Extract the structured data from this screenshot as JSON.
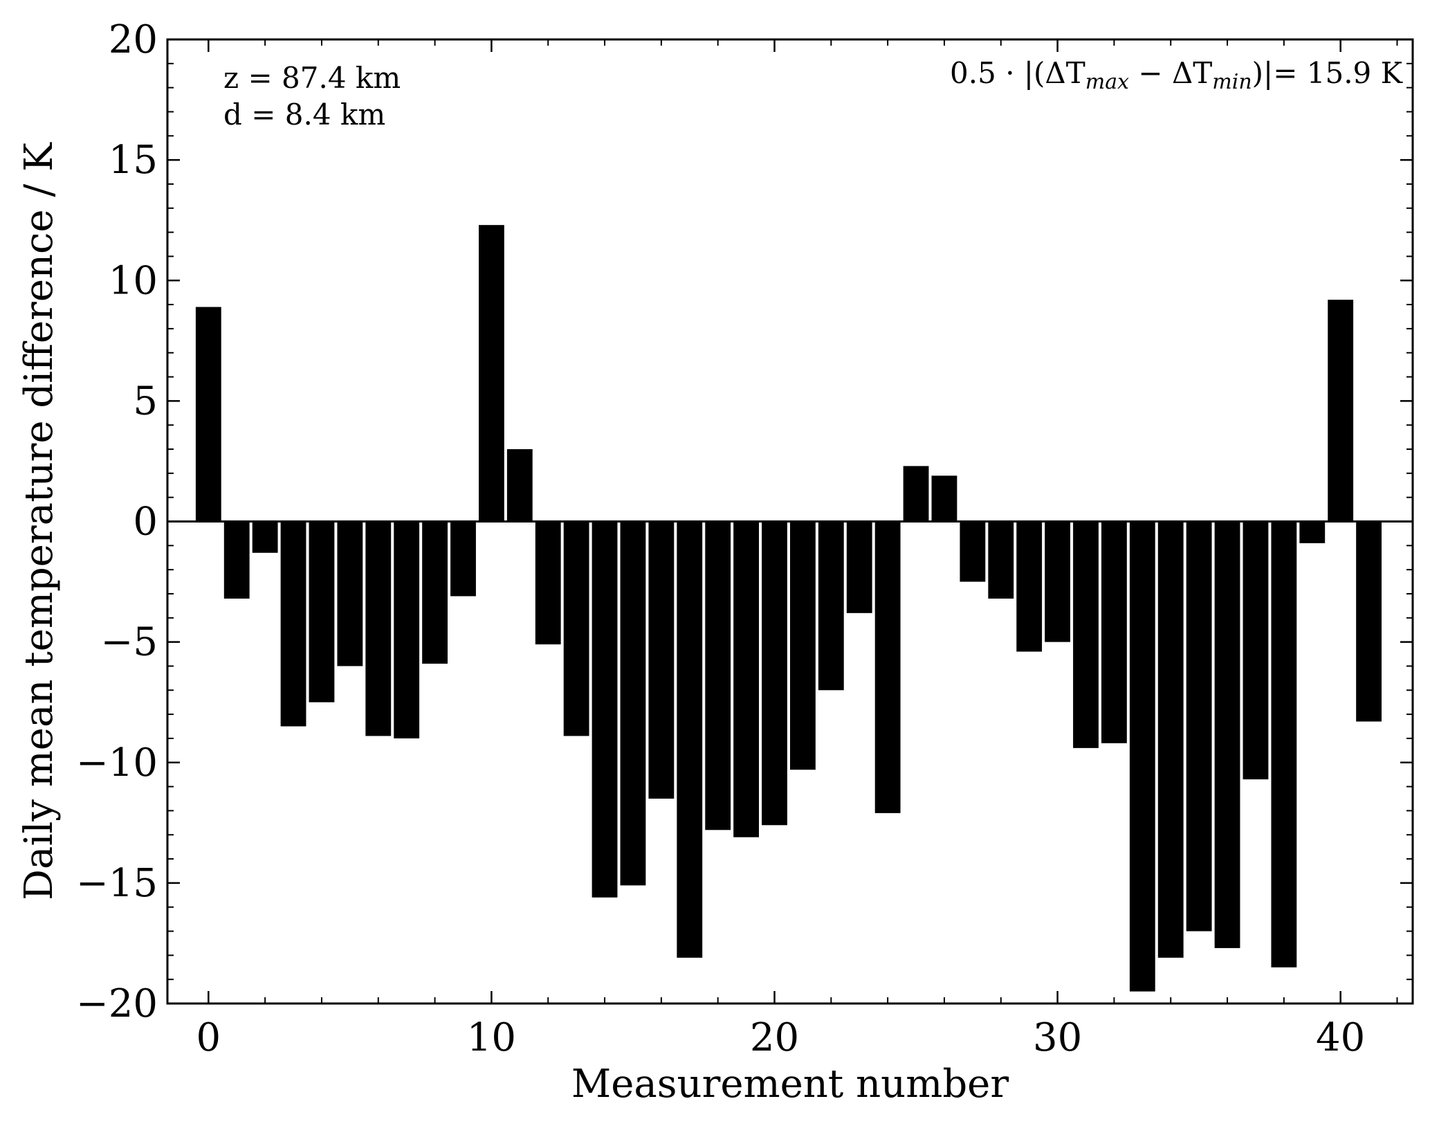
{
  "chart_data": {
    "type": "bar",
    "xlabel": "Measurement number",
    "ylabel": "Daily mean temperature difference / K",
    "xlim": [
      -1,
      43
    ],
    "ylim": [
      -20,
      20
    ],
    "x_ticks": [
      0,
      10,
      20,
      30,
      40
    ],
    "y_ticks": [
      -20,
      -15,
      -10,
      -5,
      0,
      5,
      10,
      15,
      20
    ],
    "x_tick_labels": [
      "0",
      "10",
      "20",
      "30",
      "40"
    ],
    "y_tick_labels": [
      "−20",
      "−15",
      "−10",
      "−5",
      "0",
      "5",
      "10",
      "15",
      "20"
    ],
    "grid": false,
    "bar_color": "#000000",
    "annotations": {
      "z_text": "z = 87.4 km",
      "d_text": "d = 8.4 km",
      "amp_prefix": "0.5 · |(ΔT",
      "amp_sub1": "max",
      "amp_mid": " − ΔT",
      "amp_sub2": "min",
      "amp_suffix": ")|= 15.9 K"
    },
    "x": [
      0,
      1,
      2,
      3,
      4,
      5,
      6,
      7,
      8,
      9,
      10,
      11,
      12,
      13,
      14,
      15,
      16,
      17,
      18,
      19,
      20,
      21,
      22,
      23,
      24,
      25,
      26,
      27,
      28,
      29,
      30,
      31,
      32,
      33,
      34,
      35,
      36,
      37,
      38,
      39,
      40,
      41
    ],
    "values": [
      8.9,
      -3.2,
      -1.3,
      -8.5,
      -7.5,
      -6.0,
      -8.9,
      -9.0,
      -5.9,
      -3.1,
      12.3,
      3.0,
      -5.1,
      -8.9,
      -15.6,
      -15.1,
      -11.5,
      -18.1,
      -12.8,
      -13.1,
      -12.6,
      -10.3,
      -7.0,
      -3.8,
      -12.1,
      2.3,
      1.9,
      -2.5,
      -3.2,
      -5.4,
      -5.0,
      -9.4,
      -9.2,
      -19.5,
      -18.1,
      -17.0,
      -17.7,
      -10.7,
      -18.5,
      -0.9,
      9.2,
      -8.3
    ]
  }
}
